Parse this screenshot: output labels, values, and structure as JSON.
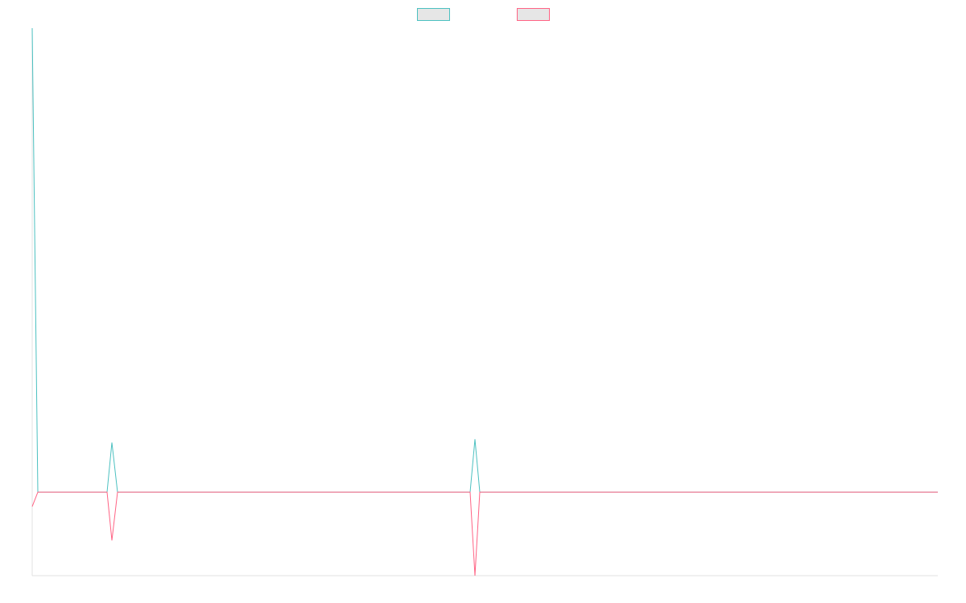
{
  "chart_data": {
    "type": "line",
    "x": [
      0,
      7,
      93,
      99,
      106,
      544,
      550,
      556,
      1125
    ],
    "xlim": [
      0,
      1125
    ],
    "ylim": [
      -18,
      100
    ],
    "series": [
      {
        "color": "#4bc0c0",
        "values": [
          100,
          0,
          0,
          10.7,
          0,
          0,
          11.4,
          0,
          0
        ]
      },
      {
        "color": "#ff6384",
        "values": [
          -3.1,
          0,
          0,
          -10.4,
          0,
          0,
          -18,
          0,
          0
        ]
      }
    ]
  }
}
